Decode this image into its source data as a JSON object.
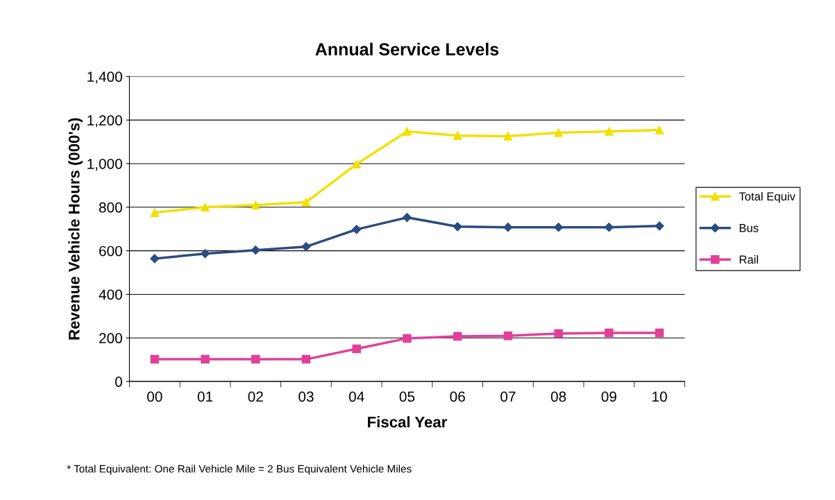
{
  "chart_data": {
    "type": "line",
    "title": "Annual Service Levels",
    "xlabel": "Fiscal Year",
    "ylabel": "Revenue Vehicle Hours (000's)",
    "categories": [
      "00",
      "01",
      "02",
      "03",
      "04",
      "05",
      "06",
      "07",
      "08",
      "09",
      "10"
    ],
    "series": [
      {
        "name": "Total Equiv",
        "color": "#f2e000",
        "marker": "triangle",
        "values": [
          775,
          800,
          810,
          823,
          998,
          1148,
          1129,
          1126,
          1142,
          1148,
          1154
        ]
      },
      {
        "name": "Bus",
        "color": "#2b4c7e",
        "marker": "diamond",
        "values": [
          564,
          587,
          603,
          619,
          698,
          753,
          711,
          708,
          708,
          708,
          714
        ]
      },
      {
        "name": "Rail",
        "color": "#e0409a",
        "marker": "square",
        "values": [
          102,
          102,
          102,
          102,
          150,
          198,
          207,
          210,
          220,
          223,
          223
        ]
      }
    ],
    "ylim": [
      0,
      1400
    ],
    "yticks": [
      {
        "value": 0,
        "label": "0"
      },
      {
        "value": 200,
        "label": "200"
      },
      {
        "value": 400,
        "label": "400"
      },
      {
        "value": 600,
        "label": "600"
      },
      {
        "value": 800,
        "label": "800"
      },
      {
        "value": 1000,
        "label": "1,000"
      },
      {
        "value": 1200,
        "label": "1,200"
      },
      {
        "value": 1400,
        "label": "1,400"
      }
    ],
    "grid": "y",
    "legend": "right",
    "line_style": "solid",
    "annotations": [
      "* Total Equivalent: One Rail Vehicle Mile = 2 Bus Equivalent Vehicle Miles"
    ]
  }
}
